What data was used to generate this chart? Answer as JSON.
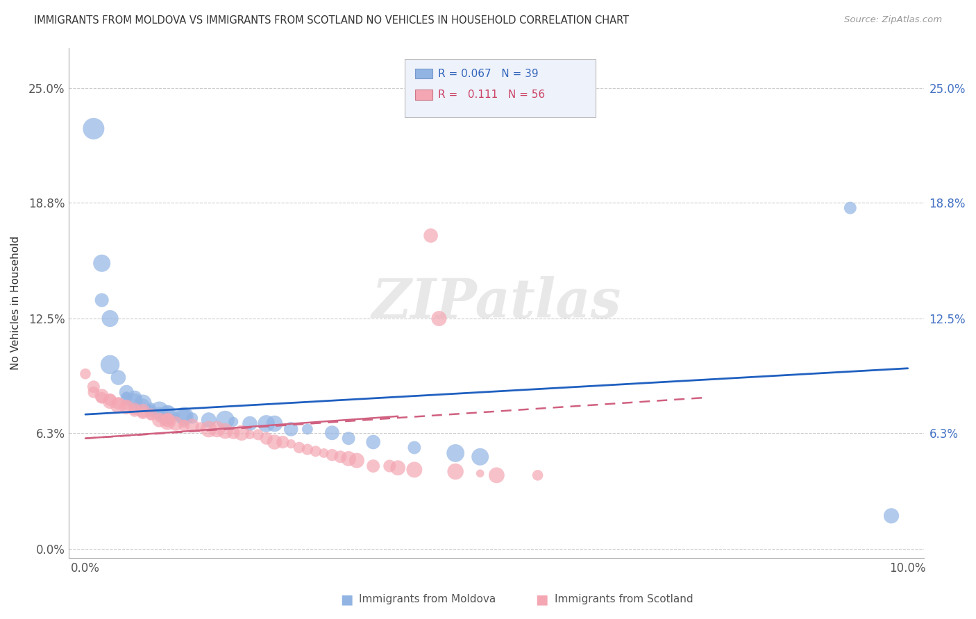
{
  "title": "IMMIGRANTS FROM MOLDOVA VS IMMIGRANTS FROM SCOTLAND NO VEHICLES IN HOUSEHOLD CORRELATION CHART",
  "source": "Source: ZipAtlas.com",
  "ylabel": "No Vehicles in Household",
  "xlim": [
    -0.002,
    0.102
  ],
  "ylim": [
    -0.005,
    0.272
  ],
  "ytick_labels": [
    "0.0%",
    "6.3%",
    "12.5%",
    "18.8%",
    "25.0%"
  ],
  "ytick_vals": [
    0.0,
    0.063,
    0.125,
    0.188,
    0.25
  ],
  "xtick_labels": [
    "0.0%",
    "10.0%"
  ],
  "xtick_vals": [
    0.0,
    0.1
  ],
  "right_ytick_labels": [
    "25.0%",
    "18.8%",
    "12.5%",
    "6.3%"
  ],
  "right_ytick_vals": [
    0.25,
    0.188,
    0.125,
    0.063
  ],
  "moldova_color": "#92b4e3",
  "scotland_color": "#f4a7b3",
  "moldova_line_color": "#2060c0",
  "scotland_line_color": "#d06080",
  "moldova_R": 0.067,
  "moldova_N": 39,
  "scotland_R": 0.111,
  "scotland_N": 56,
  "watermark": "ZIPatlas",
  "background_color": "#ffffff",
  "moldova_scatter": [
    [
      0.001,
      0.228
    ],
    [
      0.002,
      0.155
    ],
    [
      0.002,
      0.135
    ],
    [
      0.003,
      0.125
    ],
    [
      0.003,
      0.1
    ],
    [
      0.004,
      0.093
    ],
    [
      0.005,
      0.085
    ],
    [
      0.005,
      0.083
    ],
    [
      0.005,
      0.082
    ],
    [
      0.006,
      0.082
    ],
    [
      0.006,
      0.08
    ],
    [
      0.007,
      0.079
    ],
    [
      0.007,
      0.078
    ],
    [
      0.008,
      0.077
    ],
    [
      0.008,
      0.075
    ],
    [
      0.009,
      0.075
    ],
    [
      0.009,
      0.074
    ],
    [
      0.01,
      0.074
    ],
    [
      0.01,
      0.073
    ],
    [
      0.011,
      0.072
    ],
    [
      0.012,
      0.072
    ],
    [
      0.012,
      0.072
    ],
    [
      0.013,
      0.071
    ],
    [
      0.015,
      0.07
    ],
    [
      0.017,
      0.07
    ],
    [
      0.018,
      0.069
    ],
    [
      0.02,
      0.068
    ],
    [
      0.022,
      0.068
    ],
    [
      0.023,
      0.068
    ],
    [
      0.025,
      0.065
    ],
    [
      0.027,
      0.065
    ],
    [
      0.03,
      0.063
    ],
    [
      0.032,
      0.06
    ],
    [
      0.035,
      0.058
    ],
    [
      0.04,
      0.055
    ],
    [
      0.045,
      0.052
    ],
    [
      0.048,
      0.05
    ],
    [
      0.093,
      0.185
    ],
    [
      0.098,
      0.018
    ]
  ],
  "scotland_scatter": [
    [
      0.0,
      0.095
    ],
    [
      0.001,
      0.088
    ],
    [
      0.001,
      0.085
    ],
    [
      0.002,
      0.083
    ],
    [
      0.002,
      0.082
    ],
    [
      0.003,
      0.081
    ],
    [
      0.003,
      0.08
    ],
    [
      0.004,
      0.079
    ],
    [
      0.004,
      0.078
    ],
    [
      0.005,
      0.078
    ],
    [
      0.005,
      0.077
    ],
    [
      0.006,
      0.076
    ],
    [
      0.006,
      0.075
    ],
    [
      0.007,
      0.075
    ],
    [
      0.007,
      0.074
    ],
    [
      0.008,
      0.073
    ],
    [
      0.008,
      0.072
    ],
    [
      0.009,
      0.071
    ],
    [
      0.009,
      0.07
    ],
    [
      0.01,
      0.07
    ],
    [
      0.01,
      0.07
    ],
    [
      0.01,
      0.069
    ],
    [
      0.011,
      0.068
    ],
    [
      0.012,
      0.068
    ],
    [
      0.012,
      0.067
    ],
    [
      0.013,
      0.067
    ],
    [
      0.014,
      0.066
    ],
    [
      0.015,
      0.065
    ],
    [
      0.016,
      0.065
    ],
    [
      0.017,
      0.064
    ],
    [
      0.018,
      0.063
    ],
    [
      0.019,
      0.063
    ],
    [
      0.02,
      0.062
    ],
    [
      0.021,
      0.062
    ],
    [
      0.022,
      0.06
    ],
    [
      0.023,
      0.058
    ],
    [
      0.024,
      0.058
    ],
    [
      0.025,
      0.057
    ],
    [
      0.026,
      0.055
    ],
    [
      0.027,
      0.054
    ],
    [
      0.028,
      0.053
    ],
    [
      0.029,
      0.052
    ],
    [
      0.03,
      0.051
    ],
    [
      0.031,
      0.05
    ],
    [
      0.032,
      0.049
    ],
    [
      0.033,
      0.048
    ],
    [
      0.035,
      0.045
    ],
    [
      0.037,
      0.045
    ],
    [
      0.038,
      0.044
    ],
    [
      0.04,
      0.043
    ],
    [
      0.042,
      0.17
    ],
    [
      0.043,
      0.125
    ],
    [
      0.045,
      0.042
    ],
    [
      0.048,
      0.041
    ],
    [
      0.05,
      0.04
    ],
    [
      0.055,
      0.04
    ]
  ],
  "moldova_line": [
    [
      0.0,
      0.073
    ],
    [
      0.1,
      0.098
    ]
  ],
  "scotland_line": [
    [
      0.0,
      0.06
    ],
    [
      0.075,
      0.082
    ]
  ]
}
